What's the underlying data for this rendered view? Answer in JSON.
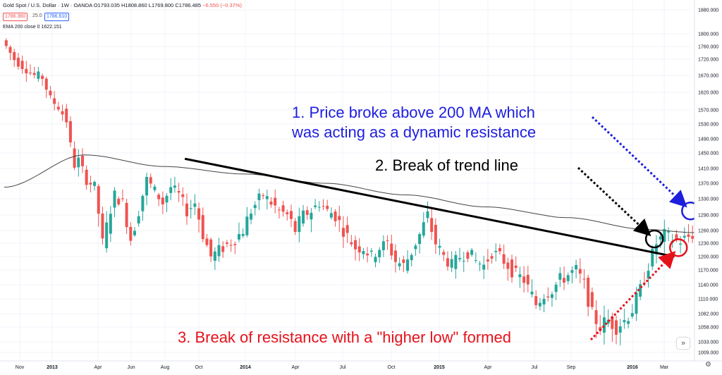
{
  "header": {
    "symbol": "Gold Spot / U.S. Dollar · 1W · OANDA",
    "ohlc": "O1793.035 H1808.860 L1769.800 C1786.485",
    "change": "−6.550 (−0.37%)",
    "sell_price": "1786.360",
    "spread": "25.0",
    "buy_price": "1786.610",
    "indicator": "EMA 200 close 0  1622.151"
  },
  "annotations": {
    "a1_line1": "1. Price broke above 200 MA which",
    "a1_line2": "was acting as a dynamic resistance",
    "a2": "2. Break of trend line",
    "a3": "3. Break of resistance with a \"higher low\" formed"
  },
  "controls": {
    "scroll_icon": "double-chevron-right-icon",
    "settings_icon": "gear-icon",
    "scroll_glyph": "»",
    "settings_glyph": "⚙"
  },
  "colors": {
    "up": "#26a69a",
    "down": "#ef5350",
    "ma": "#444444",
    "blue": "#1e1ede",
    "red": "#e5121b",
    "black": "#000000"
  },
  "chart_data": {
    "type": "candlestick",
    "instrument": "Gold Spot / U.S. Dollar",
    "interval": "1W",
    "ylim": [
      1000,
      1900
    ],
    "y_ticks": [
      1880.0,
      1800.0,
      1760.0,
      1720.0,
      1670.0,
      1620.0,
      1570.0,
      1530.0,
      1490.0,
      1450.0,
      1410.0,
      1370.0,
      1330.0,
      1290.0,
      1260.0,
      1230.0,
      1200.0,
      1170.0,
      1140.0,
      1110.0,
      1082.0,
      1058.0,
      1033.0,
      1009.0
    ],
    "x_ticks": [
      "Nov",
      "2013",
      "Apr",
      "Jun",
      "Aug",
      "Oct",
      "2014",
      "Apr",
      "Jul",
      "Oct",
      "2015",
      "Apr",
      "Jul",
      "Sep",
      "2016",
      "Mar"
    ],
    "close_path": [
      [
        0,
        1780
      ],
      [
        3,
        1720
      ],
      [
        6,
        1690
      ],
      [
        8,
        1670
      ],
      [
        10,
        1665
      ],
      [
        12,
        1600
      ],
      [
        14,
        1580
      ],
      [
        16,
        1540
      ],
      [
        17,
        1470
      ],
      [
        18,
        1420
      ],
      [
        19,
        1430
      ],
      [
        21,
        1380
      ],
      [
        23,
        1360
      ],
      [
        25,
        1230
      ],
      [
        28,
        1340
      ],
      [
        30,
        1320
      ],
      [
        32,
        1240
      ],
      [
        34,
        1300
      ],
      [
        36,
        1380
      ],
      [
        38,
        1350
      ],
      [
        40,
        1320
      ],
      [
        42,
        1360
      ],
      [
        44,
        1340
      ],
      [
        46,
        1300
      ],
      [
        48,
        1320
      ],
      [
        50,
        1250
      ],
      [
        52,
        1200
      ],
      [
        55,
        1220
      ],
      [
        58,
        1240
      ],
      [
        60,
        1260
      ],
      [
        62,
        1300
      ],
      [
        64,
        1330
      ],
      [
        65,
        1340
      ],
      [
        67,
        1320
      ],
      [
        69,
        1300
      ],
      [
        71,
        1290
      ],
      [
        73,
        1260
      ],
      [
        75,
        1290
      ],
      [
        77,
        1300
      ],
      [
        79,
        1320
      ],
      [
        81,
        1300
      ],
      [
        83,
        1290
      ],
      [
        85,
        1260
      ],
      [
        88,
        1220
      ],
      [
        90,
        1220
      ],
      [
        92,
        1200
      ],
      [
        94,
        1220
      ],
      [
        96,
        1230
      ],
      [
        98,
        1190
      ],
      [
        100,
        1180
      ],
      [
        102,
        1210
      ],
      [
        104,
        1250
      ],
      [
        106,
        1290
      ],
      [
        108,
        1230
      ],
      [
        110,
        1200
      ],
      [
        112,
        1180
      ],
      [
        114,
        1200
      ],
      [
        116,
        1210
      ],
      [
        118,
        1190
      ],
      [
        120,
        1180
      ],
      [
        122,
        1210
      ],
      [
        124,
        1200
      ],
      [
        126,
        1180
      ],
      [
        128,
        1160
      ],
      [
        130,
        1150
      ],
      [
        133,
        1100
      ],
      [
        135,
        1120
      ],
      [
        137,
        1130
      ],
      [
        139,
        1150
      ],
      [
        141,
        1160
      ],
      [
        143,
        1170
      ],
      [
        145,
        1140
      ],
      [
        147,
        1080
      ],
      [
        149,
        1060
      ],
      [
        151,
        1070
      ],
      [
        153,
        1060
      ],
      [
        155,
        1070
      ],
      [
        157,
        1090
      ],
      [
        159,
        1130
      ],
      [
        161,
        1180
      ],
      [
        163,
        1230
      ],
      [
        165,
        1250
      ],
      [
        167,
        1240
      ],
      [
        169,
        1235
      ],
      [
        171,
        1245
      ],
      [
        172,
        1250
      ]
    ],
    "ema200_path": [
      [
        0,
        1360
      ],
      [
        20,
        1445
      ],
      [
        40,
        1415
      ],
      [
        60,
        1395
      ],
      [
        80,
        1370
      ],
      [
        100,
        1340
      ],
      [
        120,
        1310
      ],
      [
        140,
        1285
      ],
      [
        160,
        1262
      ],
      [
        172,
        1255
      ]
    ],
    "trend_line": [
      [
        45,
        1435
      ],
      [
        167,
        1200
      ]
    ],
    "markers": [
      {
        "label": "blue",
        "week": 171,
        "price": 1300
      },
      {
        "label": "black",
        "week": 162,
        "price": 1240
      },
      {
        "label": "red",
        "week": 168,
        "price": 1220
      }
    ],
    "grid": true
  }
}
